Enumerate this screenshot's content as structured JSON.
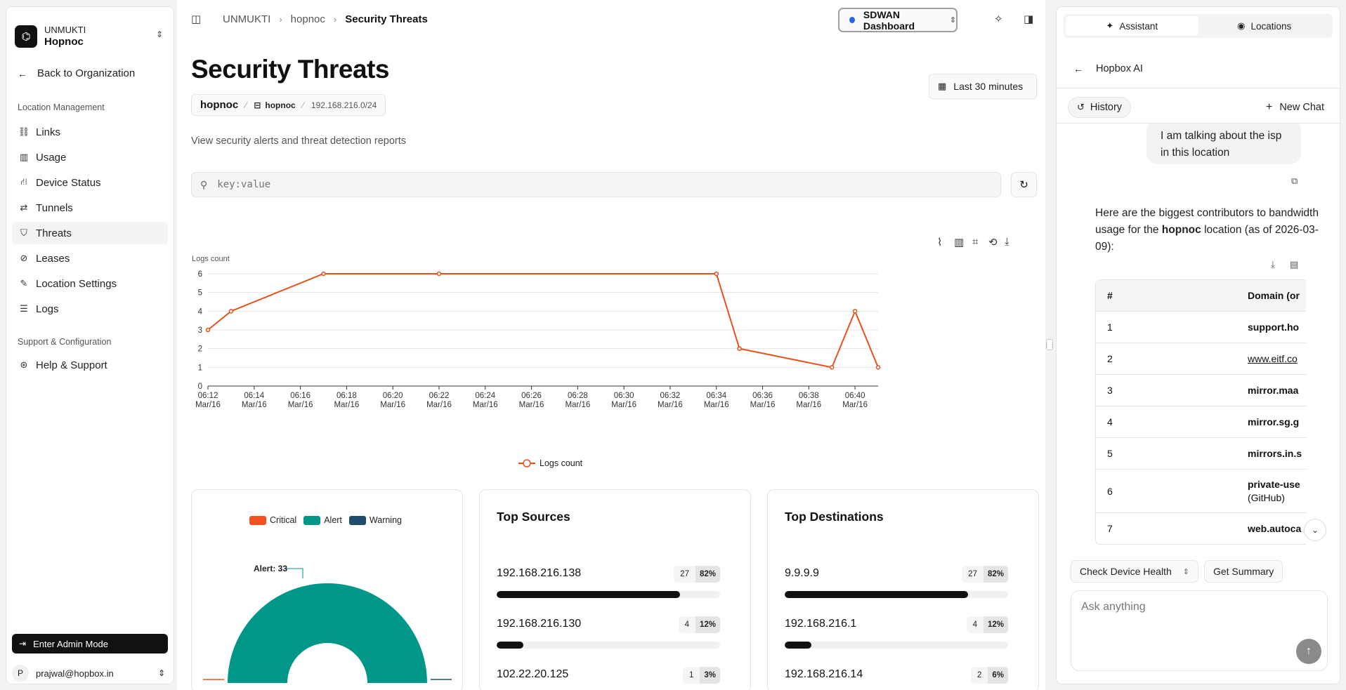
{
  "sidebar": {
    "org_name": "UNMUKTI",
    "location": "Hopnoc",
    "back_label": "Back to Organization",
    "section1": "Location Management",
    "items": [
      {
        "label": "Links",
        "icon": "links-icon",
        "glyph": "⛓"
      },
      {
        "label": "Usage",
        "icon": "usage-icon",
        "glyph": "▥"
      },
      {
        "label": "Device Status",
        "icon": "device-status-icon",
        "glyph": "⛙"
      },
      {
        "label": "Tunnels",
        "icon": "tunnels-icon",
        "glyph": "⇄"
      },
      {
        "label": "Threats",
        "icon": "shield-icon",
        "glyph": "⛉"
      },
      {
        "label": "Leases",
        "icon": "leases-icon",
        "glyph": "⊘"
      },
      {
        "label": "Location Settings",
        "icon": "edit-icon",
        "glyph": "✎"
      },
      {
        "label": "Logs",
        "icon": "database-icon",
        "glyph": "☰"
      }
    ],
    "section2": "Support & Configuration",
    "support_items": [
      {
        "label": "Help & Support",
        "icon": "lifebuoy-icon",
        "glyph": "⊛"
      }
    ],
    "admin_label": "Enter Admin Mode",
    "user_initial": "P",
    "user_email": "prajwal@hopbox.in"
  },
  "header": {
    "breadcrumb": [
      "UNMUKTI",
      "hopnoc",
      "Security Threats"
    ],
    "dashboard_label": "SDWAN Dashboard"
  },
  "page": {
    "title": "Security Threats",
    "chips": [
      "hopnoc",
      "hopnoc",
      "192.168.216.0/24"
    ],
    "time_range": "Last 30 minutes",
    "subtitle": "View security alerts and threat detection reports",
    "search_placeholder": "key:value"
  },
  "chart_data": {
    "type": "line",
    "ylabel": "Logs count",
    "ylim": [
      0,
      6
    ],
    "yticks": [
      0,
      1,
      2,
      3,
      4,
      5,
      6
    ],
    "x_ticks": [
      "06:12\nMar/16",
      "06:14\nMar/16",
      "06:16\nMar/16",
      "06:18\nMar/16",
      "06:20\nMar/16",
      "06:22\nMar/16",
      "06:24\nMar/16",
      "06:26\nMar/16",
      "06:28\nMar/16",
      "06:30\nMar/16",
      "06:32\nMar/16",
      "06:34\nMar/16",
      "06:36\nMar/16",
      "06:38\nMar/16",
      "06:40\nMar/16"
    ],
    "xlim": [
      "06:12",
      "06:41"
    ],
    "series": [
      {
        "name": "Logs count",
        "color": "#e8501a",
        "points": [
          [
            "06:12",
            3
          ],
          [
            "06:13",
            4
          ],
          [
            "06:17",
            6
          ],
          [
            "06:22",
            6
          ],
          [
            "06:34",
            6
          ],
          [
            "06:35",
            2
          ],
          [
            "06:39",
            1
          ],
          [
            "06:40",
            4
          ],
          [
            "06:41",
            1
          ]
        ]
      }
    ],
    "legend": "bottom-center",
    "grid": true
  },
  "severity": {
    "legend": [
      {
        "label": "Critical",
        "color": "#f4511e"
      },
      {
        "label": "Alert",
        "color": "#009688"
      },
      {
        "label": "Warning",
        "color": "#1e4d6b"
      }
    ],
    "annotation": "Alert: 33",
    "alert_count": 33
  },
  "top_sources": {
    "title": "Top Sources",
    "rows": [
      {
        "ip": "192.168.216.138",
        "count": "27",
        "pct": "82%",
        "frac": 0.82
      },
      {
        "ip": "192.168.216.130",
        "count": "4",
        "pct": "12%",
        "frac": 0.12
      },
      {
        "ip": "102.22.20.125",
        "count": "1",
        "pct": "3%",
        "frac": 0.03
      }
    ]
  },
  "top_destinations": {
    "title": "Top Destinations",
    "rows": [
      {
        "ip": "9.9.9.9",
        "count": "27",
        "pct": "82%",
        "frac": 0.82
      },
      {
        "ip": "192.168.216.1",
        "count": "4",
        "pct": "12%",
        "frac": 0.12
      },
      {
        "ip": "192.168.216.14",
        "count": "2",
        "pct": "6%",
        "frac": 0.06
      }
    ]
  },
  "panel": {
    "tabs": [
      "Assistant",
      "Locations"
    ],
    "title": "Hopbox AI",
    "history_label": "History",
    "new_chat_label": "New Chat",
    "user_msg": "I am talking about the isp in this location",
    "ai_msg_pre": "Here are the biggest contributors to bandwidth usage for the ",
    "ai_msg_bold": "hopnoc",
    "ai_msg_post": " location (as of 2026-03-09):",
    "table_head": [
      "#",
      "Domain (or"
    ],
    "table_rows": [
      {
        "n": "1",
        "d": "support.ho"
      },
      {
        "n": "2",
        "d": "www.eitf.co"
      },
      {
        "n": "3",
        "d": "mirror.maa"
      },
      {
        "n": "4",
        "d": "mirror.sg.g"
      },
      {
        "n": "5",
        "d": "mirrors.in.s"
      },
      {
        "n": "6",
        "d": "private-use",
        "sub": "(GitHub)"
      },
      {
        "n": "7",
        "d": "web.autoca"
      }
    ],
    "action1": "Check Device Health",
    "action2": "Get Summary",
    "input_placeholder": "Ask anything"
  }
}
